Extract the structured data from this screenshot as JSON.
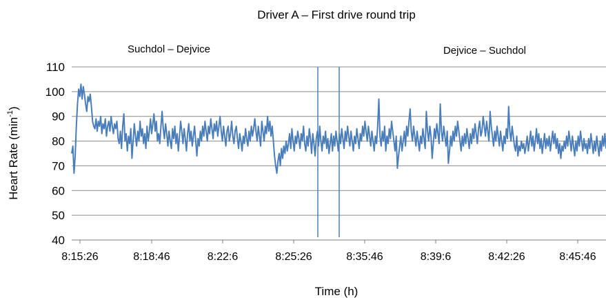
{
  "chart_data": {
    "type": "line",
    "title": "Driver A – First drive round trip",
    "xlabel": "Time (h)",
    "ylabel_main": "Heart Rate (min",
    "ylabel_sup": "-1",
    "ylabel_close": ")",
    "ylim": [
      40,
      110
    ],
    "yticks": [
      40,
      50,
      60,
      70,
      80,
      90,
      100,
      110
    ],
    "xtick_labels": [
      "8:15:26",
      "8:18:46",
      "8:22:6",
      "8:25:26",
      "8:35:46",
      "8:39:6",
      "8:42:26",
      "8:45:46"
    ],
    "grid": true,
    "segments": [
      {
        "label": "Suchdol – Dejvice"
      },
      {
        "label": "Dejvice – Suchdol"
      }
    ],
    "markers_y": [
      40,
      110
    ],
    "line_color": "#4a7ebb",
    "series": [
      {
        "values": [
          75,
          78,
          67,
          74,
          86,
          95,
          101,
          98,
          103,
          97,
          102,
          99,
          95,
          92,
          98,
          96,
          99,
          94,
          88,
          86,
          85,
          89,
          84,
          88,
          86,
          90,
          83,
          87,
          85,
          89,
          82,
          86,
          88,
          84,
          90,
          86,
          83,
          87,
          85,
          88,
          81,
          79,
          84,
          77,
          86,
          91,
          80,
          83,
          76,
          82,
          79,
          85,
          73,
          80,
          87,
          82,
          78,
          84,
          80,
          88,
          82,
          85,
          79,
          83,
          77,
          86,
          80,
          84,
          89,
          83,
          87,
          91,
          84,
          88,
          80,
          83,
          79,
          86,
          92,
          85,
          81,
          87,
          83,
          78,
          84,
          80,
          77,
          85,
          81,
          86,
          79,
          83,
          76,
          82,
          88,
          84,
          79,
          85,
          81,
          76,
          83,
          87,
          80,
          84,
          78,
          82,
          86,
          80,
          74,
          81,
          78,
          84,
          80,
          86,
          82,
          88,
          84,
          80,
          86,
          83,
          89,
          85,
          81,
          87,
          84,
          88,
          82,
          86,
          90,
          84,
          80,
          86,
          82,
          78,
          84,
          86,
          80,
          83,
          88,
          82,
          79,
          84,
          86,
          81,
          77,
          83,
          80,
          76,
          82,
          79,
          85,
          81,
          78,
          84,
          80,
          86,
          82,
          85,
          89,
          84,
          80,
          86,
          82,
          78,
          88,
          84,
          80,
          86,
          83,
          90,
          84,
          88,
          82,
          86,
          80,
          74,
          70,
          67,
          72,
          75,
          70,
          77,
          73,
          78,
          75,
          80,
          76,
          79,
          83,
          77,
          85,
          80,
          76,
          82,
          79,
          84,
          81,
          77,
          83,
          80,
          86,
          79,
          76,
          82,
          78,
          85,
          81,
          75,
          83,
          79,
          74,
          81,
          84,
          78,
          86,
          80,
          76,
          82,
          79,
          84,
          77,
          81,
          75,
          79,
          83,
          76,
          82,
          78,
          84,
          80,
          76,
          83,
          79,
          85,
          81,
          77,
          84,
          80,
          86,
          82,
          78,
          84,
          80,
          76,
          82,
          79,
          85,
          81,
          77,
          83,
          80,
          86,
          82,
          88,
          84,
          80,
          86,
          82,
          78,
          84,
          80,
          76,
          82,
          79,
          86,
          97,
          82,
          78,
          84,
          80,
          86,
          76,
          82,
          79,
          85,
          81,
          88,
          84,
          80,
          76,
          82,
          69,
          74,
          78,
          82,
          76,
          80,
          84,
          78,
          86,
          82,
          88,
          93,
          84,
          80,
          86,
          82,
          78,
          84,
          80,
          76,
          82,
          79,
          85,
          81,
          77,
          92,
          84,
          80,
          86,
          82,
          73,
          79,
          85,
          81,
          87,
          83,
          79,
          95,
          84,
          80,
          86,
          82,
          78,
          84,
          71,
          76,
          82,
          78,
          84,
          80,
          86,
          82,
          88,
          84,
          80,
          76,
          82,
          78,
          83,
          79,
          85,
          81,
          77,
          83,
          79,
          85,
          81,
          87,
          83,
          79,
          85,
          88,
          82,
          84,
          90,
          86,
          82,
          88,
          84,
          80,
          92,
          86,
          82,
          78,
          84,
          80,
          86,
          82,
          78,
          84,
          80,
          76,
          82,
          79,
          85,
          81,
          94,
          84,
          80,
          86,
          82,
          78,
          76,
          82,
          74,
          78,
          76,
          80,
          77,
          79,
          75,
          78,
          82,
          76,
          80,
          84,
          78,
          82,
          76,
          80,
          85,
          79,
          83,
          77,
          81,
          75,
          79,
          83,
          77,
          81,
          78,
          82,
          76,
          80,
          84,
          79,
          83,
          77,
          81,
          75,
          79,
          73,
          78,
          76,
          80,
          77,
          82,
          78,
          84,
          80,
          76,
          82,
          78,
          74,
          80,
          76,
          82,
          78,
          84,
          80,
          76,
          81,
          77,
          79,
          75,
          81,
          77,
          83,
          79,
          75,
          80,
          76,
          82,
          78,
          74,
          80,
          76,
          82,
          78,
          83,
          77
        ]
      }
    ]
  }
}
